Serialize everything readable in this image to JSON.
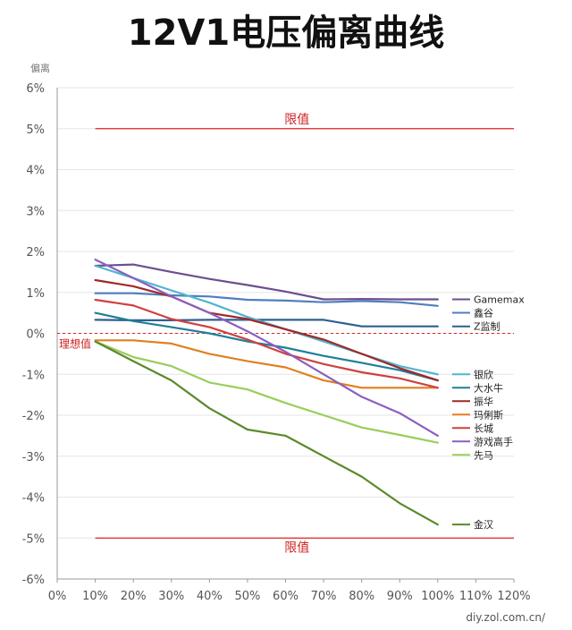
{
  "chart_data": {
    "type": "line",
    "title": "12V1电压偏离曲线",
    "ylabel": "偏离",
    "xlabel": "",
    "x": [
      10,
      20,
      30,
      40,
      50,
      60,
      70,
      80,
      90,
      100
    ],
    "xticks": [
      "0%",
      "10%",
      "20%",
      "30%",
      "40%",
      "50%",
      "60%",
      "70%",
      "80%",
      "90%",
      "100%",
      "110%",
      "120%"
    ],
    "xlim": [
      0,
      120
    ],
    "yticks": [
      "6%",
      "5%",
      "4%",
      "3%",
      "2%",
      "1%",
      "0%",
      "-1%",
      "-2%",
      "-3%",
      "-4%",
      "-5%",
      "-6%"
    ],
    "ylim": [
      -6,
      6
    ],
    "grid": "horizontal",
    "legend": "right",
    "limit_label": "限值",
    "limit_values": [
      5,
      -5
    ],
    "ideal_label": "理想值",
    "ideal_value": 0,
    "series": [
      {
        "name": "Gamemax",
        "color": "#6b4f8f",
        "values": [
          1.65,
          1.68,
          1.5,
          1.33,
          1.18,
          1.02,
          0.83,
          0.84,
          0.83,
          0.83
        ]
      },
      {
        "name": "鑫谷",
        "color": "#4f7fbf",
        "values": [
          0.98,
          0.98,
          0.93,
          0.9,
          0.82,
          0.8,
          0.76,
          0.79,
          0.76,
          0.67
        ]
      },
      {
        "name": "Z监制",
        "color": "#2f5f8f",
        "values": [
          0.33,
          0.32,
          0.32,
          0.33,
          0.33,
          0.33,
          0.33,
          0.17,
          0.17,
          0.17
        ]
      },
      {
        "name": "银欣",
        "color": "#4fb5cf",
        "values": [
          1.65,
          1.35,
          1.05,
          0.75,
          0.4,
          0.1,
          -0.2,
          -0.5,
          -0.8,
          -1.0
        ]
      },
      {
        "name": "玛俐斯",
        "color": "#e08020",
        "values": [
          -0.17,
          -0.17,
          -0.25,
          -0.5,
          -0.68,
          -0.83,
          -1.15,
          -1.33,
          -1.33,
          -1.33
        ]
      },
      {
        "name": "大水牛",
        "color": "#1f7f99",
        "values": [
          0.5,
          0.3,
          0.15,
          0.0,
          -0.2,
          -0.35,
          -0.55,
          -0.72,
          -0.9,
          -1.15
        ]
      },
      {
        "name": "振华",
        "color": "#a02828",
        "values": [
          1.3,
          1.15,
          0.9,
          0.5,
          0.35,
          0.1,
          -0.15,
          -0.5,
          -0.85,
          -1.15
        ]
      },
      {
        "name": "长城",
        "color": "#cf4040",
        "values": [
          0.82,
          0.68,
          0.35,
          0.15,
          -0.15,
          -0.5,
          -0.75,
          -0.95,
          -1.1,
          -1.33
        ]
      },
      {
        "name": "游戏高手",
        "color": "#8a5fbf",
        "values": [
          1.8,
          1.35,
          0.9,
          0.5,
          0.05,
          -0.45,
          -1.0,
          -1.55,
          -1.95,
          -2.5
        ]
      },
      {
        "name": "先马",
        "color": "#9acd5a",
        "values": [
          -0.2,
          -0.58,
          -0.8,
          -1.2,
          -1.37,
          -1.7,
          -2.0,
          -2.3,
          -2.48,
          -2.67
        ]
      },
      {
        "name": "金汉",
        "color": "#5a8a2a",
        "values": [
          -0.2,
          -0.68,
          -1.15,
          -1.83,
          -2.35,
          -2.5,
          -3.0,
          -3.5,
          -4.15,
          -4.67
        ]
      }
    ]
  },
  "watermark": {
    "domain": "diy.zol.com.cn/"
  }
}
